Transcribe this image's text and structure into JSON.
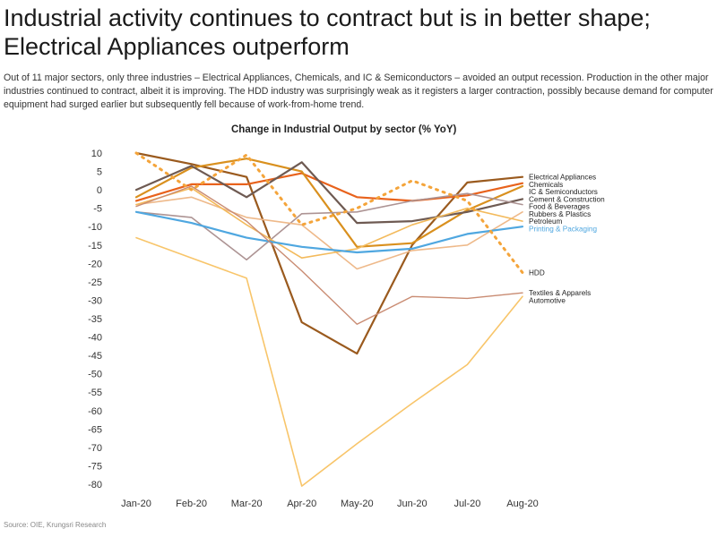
{
  "page": {
    "headline": "Industrial activity continues to contract but is in better shape; Electrical Appliances outperform",
    "intro": "Out of 11 major sectors, only three industries – Electrical Appliances, Chemicals, and IC & Semiconductors – avoided an output recession. Production in the other major industries continued to contract, albeit it is improving. The HDD industry was surprisingly weak as it registers a larger contraction, possibly because demand for computer equipment had surged earlier but subsequently fell because of work-from-home trend.",
    "source": "Source: OIE, Krungsri Research"
  },
  "chart_data": {
    "type": "line",
    "title": "Change in Industrial Output by sector (% YoY)",
    "xlabel": "",
    "ylabel": "",
    "categories": [
      "Jan-20",
      "Feb-20",
      "Mar-20",
      "Apr-20",
      "May-20",
      "Jun-20",
      "Jul-20",
      "Aug-20"
    ],
    "ylim": [
      -80,
      10
    ],
    "yticks": [
      10,
      5,
      0,
      -5,
      -10,
      -15,
      -20,
      -25,
      -30,
      -35,
      -40,
      -45,
      -50,
      -55,
      -60,
      -65,
      -70,
      -75,
      -80
    ],
    "grid": false,
    "legend": "right-end labels",
    "series": [
      {
        "name": "Electrical Appliances",
        "color": "#9a5a1e",
        "dash": false,
        "width": 2.2,
        "values": [
          10,
          7,
          3.5,
          -36,
          -44.5,
          -15,
          2,
          3.5
        ]
      },
      {
        "name": "Chemicals",
        "color": "#e8621c",
        "dash": false,
        "width": 2.2,
        "values": [
          -3,
          1.5,
          1.5,
          4.5,
          -2,
          -3,
          -1.5,
          1.8
        ]
      },
      {
        "name": "IC & Semiconductors",
        "color": "#d9901e",
        "dash": false,
        "width": 2.2,
        "values": [
          -2,
          6,
          8.5,
          5,
          -15.5,
          -14.5,
          -5.5,
          1
        ]
      },
      {
        "name": "Cement & Construction",
        "color": "#6e5a52",
        "dash": false,
        "width": 2.2,
        "values": [
          0,
          6.5,
          -2,
          7.5,
          -9,
          -8.5,
          -6,
          -2.5
        ]
      },
      {
        "name": "Food & Beverages",
        "color": "#ad9494",
        "dash": false,
        "width": 1.6,
        "values": [
          -6,
          -7.5,
          -19,
          -6.5,
          -6,
          -3,
          -1,
          -4
        ]
      },
      {
        "name": "Rubbers & Plastics",
        "color": "#eeb98a",
        "dash": false,
        "width": 1.6,
        "values": [
          -4,
          -2,
          -7.5,
          -9.5,
          -21.5,
          -16.5,
          -15,
          -6
        ]
      },
      {
        "name": "Petroleum",
        "color": "#f3ba5c",
        "dash": false,
        "width": 1.6,
        "values": [
          -4,
          0.5,
          -9.5,
          -18.5,
          -16,
          -9.5,
          -5,
          -8.5
        ]
      },
      {
        "name": "Printing & Packaging",
        "color": "#4fa7e0",
        "dash": false,
        "width": 2.2,
        "values": [
          -6,
          -9,
          -13,
          -15.5,
          -17,
          -16,
          -12,
          -10
        ]
      },
      {
        "name": "HDD",
        "color": "#f4a43a",
        "dash": true,
        "width": 3,
        "values": [
          10,
          0,
          9.5,
          -9.5,
          -5,
          2.5,
          -3,
          -22.5
        ]
      },
      {
        "name": "Textiles & Apparels",
        "color": "#c98b72",
        "dash": false,
        "width": 1.4,
        "values": [
          -4.5,
          1,
          -8.5,
          -22,
          -36.5,
          -29,
          -29.5,
          -28
        ]
      },
      {
        "name": "Automotive",
        "color": "#f8c56a",
        "dash": false,
        "width": 1.6,
        "values": [
          -13,
          -18.5,
          -24,
          -80.5,
          -69,
          -58,
          -47.5,
          -29
        ]
      }
    ]
  }
}
